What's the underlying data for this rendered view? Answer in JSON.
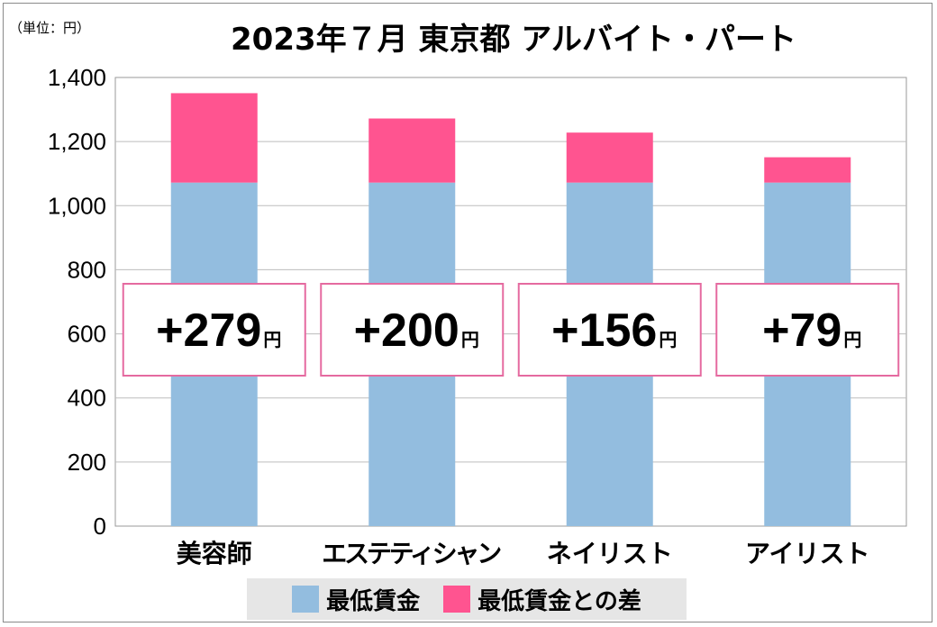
{
  "unit_label": "（単位：円）",
  "colors": {
    "base": "#93bddf",
    "diff": "#ff5490",
    "label_border": "#e56aa0",
    "grid": "#bdbdbd"
  },
  "chart_data": {
    "type": "bar",
    "stacked": true,
    "title": "2023年７月 東京都 アルバイト・パート",
    "categories": [
      "美容師",
      "エステティシャン",
      "ネイリスト",
      "アイリスト"
    ],
    "series": [
      {
        "name": "最低賃金",
        "values": [
          1072,
          1072,
          1072,
          1072
        ]
      },
      {
        "name": "最低賃金との差",
        "values": [
          279,
          200,
          156,
          79
        ]
      }
    ],
    "data_labels": [
      {
        "value": "+279",
        "unit": "円"
      },
      {
        "value": "+200",
        "unit": "円"
      },
      {
        "value": "+156",
        "unit": "円"
      },
      {
        "value": "+79",
        "unit": "円"
      }
    ],
    "yticks": [
      "0",
      "200",
      "400",
      "600",
      "800",
      "1,000",
      "1,200",
      "1,400"
    ],
    "ylim": [
      0,
      1400
    ],
    "grid": true,
    "legend_position": "bottom"
  }
}
